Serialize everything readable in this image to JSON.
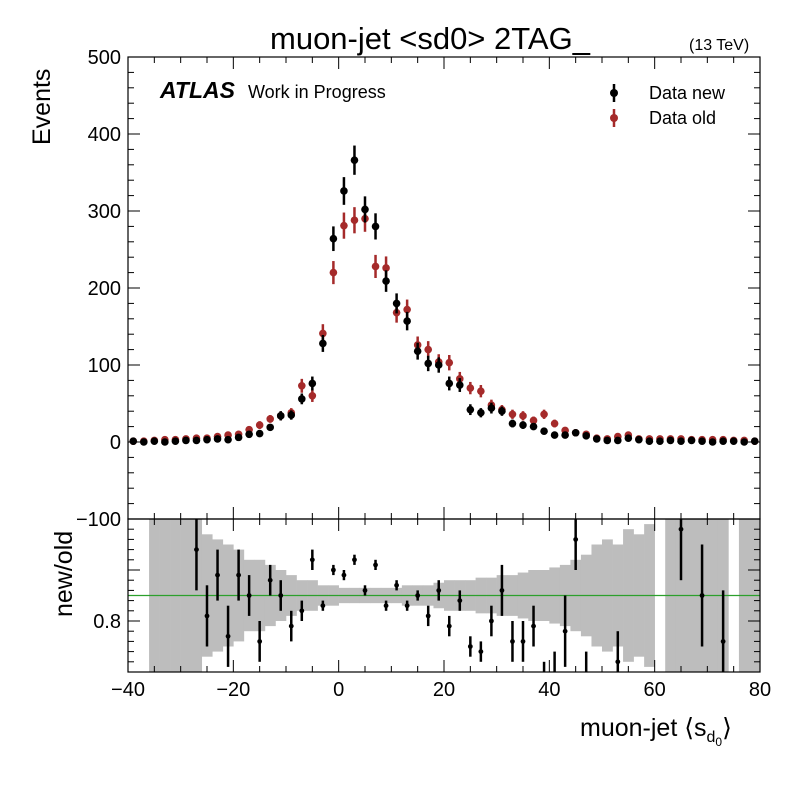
{
  "chart_data": {
    "type": "scatter",
    "title": "muon-jet <sd0> 2TAG_",
    "energy_label": "(13 TeV)",
    "atlas_label": "ATLAS",
    "atlas_sublabel": "Work in Progress",
    "xlabel": "muon-jet ⟨s",
    "xlabel_sub": "d",
    "xlabel_subsub": "0",
    "xlabel_close": "⟩",
    "ylabel": "Events",
    "ratio_ylabel": "new/old",
    "xlim": [
      -40,
      80
    ],
    "ylim": [
      -100,
      500
    ],
    "ratio_ylim": [
      0.7,
      1.0
    ],
    "ratio_reference": 0.85,
    "x_ticks": [
      "−40",
      "−20",
      "0",
      "20",
      "40",
      "60",
      "80"
    ],
    "x_tick_values": [
      -40,
      -20,
      0,
      20,
      40,
      60,
      80
    ],
    "y_ticks": [
      "−100",
      "0",
      "100",
      "200",
      "300",
      "400",
      "500"
    ],
    "y_tick_values": [
      -100,
      0,
      100,
      200,
      300,
      400,
      500
    ],
    "ratio_y_ticks": [
      "0.8"
    ],
    "ratio_y_tick_values": [
      0.8
    ],
    "legend_position": "top-right",
    "colors": {
      "new": "#000000",
      "old": "#a52a2a",
      "band": "#bdbdbd",
      "reference": "#2ca02c"
    },
    "series": [
      {
        "name": "Data new",
        "x": [
          -39,
          -37,
          -35,
          -33,
          -31,
          -29,
          -27,
          -25,
          -23,
          -21,
          -19,
          -17,
          -15,
          -13,
          -11,
          -9,
          -7,
          -5,
          -3,
          -1,
          1,
          3,
          5,
          7,
          9,
          11,
          13,
          15,
          17,
          19,
          21,
          23,
          25,
          27,
          29,
          31,
          33,
          35,
          37,
          39,
          41,
          43,
          45,
          47,
          49,
          51,
          53,
          55,
          57,
          59,
          61,
          63,
          65,
          67,
          69,
          71,
          73,
          75,
          77,
          79
        ],
        "y": [
          1,
          0,
          1,
          0,
          1,
          2,
          2,
          3,
          4,
          3,
          6,
          10,
          11,
          19,
          34,
          35,
          56,
          76,
          128,
          264,
          326,
          366,
          302,
          280,
          209,
          180,
          157,
          118,
          102,
          100,
          76,
          74,
          42,
          38,
          44,
          40,
          24,
          22,
          20,
          14,
          9,
          9,
          12,
          8,
          4,
          2,
          2,
          5,
          3,
          1,
          1,
          2,
          1,
          2,
          1,
          0,
          1,
          1,
          0,
          1
        ],
        "err": [
          1,
          1,
          1,
          1,
          1,
          1,
          2,
          2,
          2,
          2,
          3,
          3,
          3,
          4,
          6,
          6,
          7,
          9,
          11,
          16,
          18,
          19,
          17,
          17,
          14,
          13,
          12,
          11,
          10,
          10,
          9,
          9,
          7,
          6,
          7,
          6,
          5,
          5,
          4,
          4,
          3,
          3,
          3,
          3,
          2,
          1,
          1,
          2,
          2,
          1,
          1,
          1,
          1,
          1,
          1,
          1,
          1,
          1,
          1,
          1
        ]
      },
      {
        "name": "Data old",
        "x": [
          -39,
          -37,
          -35,
          -33,
          -31,
          -29,
          -27,
          -25,
          -23,
          -21,
          -19,
          -17,
          -15,
          -13,
          -11,
          -9,
          -7,
          -5,
          -3,
          -1,
          1,
          3,
          5,
          7,
          9,
          11,
          13,
          15,
          17,
          19,
          21,
          23,
          25,
          27,
          29,
          31,
          33,
          35,
          37,
          39,
          41,
          43,
          45,
          47,
          49,
          51,
          53,
          55,
          57,
          59,
          61,
          63,
          65,
          67,
          69,
          71,
          73,
          75,
          77,
          79
        ],
        "y": [
          1,
          1,
          2,
          3,
          3,
          4,
          5,
          5,
          7,
          9,
          10,
          16,
          22,
          30,
          34,
          38,
          73,
          60,
          141,
          220,
          281,
          288,
          290,
          228,
          226,
          168,
          172,
          126,
          120,
          104,
          103,
          82,
          70,
          66,
          48,
          42,
          36,
          34,
          28,
          36,
          24,
          15,
          12,
          10,
          5,
          4,
          7,
          9,
          4,
          4,
          4,
          4,
          4,
          3,
          3,
          3,
          3,
          2,
          2,
          1
        ],
        "err": [
          1,
          1,
          1,
          2,
          2,
          2,
          2,
          2,
          3,
          3,
          3,
          4,
          5,
          5,
          6,
          6,
          9,
          8,
          12,
          15,
          17,
          17,
          17,
          15,
          15,
          13,
          13,
          11,
          11,
          10,
          10,
          9,
          8,
          8,
          7,
          6,
          6,
          6,
          5,
          6,
          5,
          4,
          3,
          3,
          2,
          2,
          3,
          3,
          2,
          2,
          2,
          2,
          2,
          2,
          2,
          2,
          2,
          1,
          1,
          1
        ]
      }
    ],
    "ratio": {
      "x": [
        -27,
        -25,
        -23,
        -21,
        -19,
        -17,
        -15,
        -13,
        -11,
        -9,
        -7,
        -5,
        -3,
        -1,
        1,
        3,
        5,
        7,
        9,
        11,
        13,
        15,
        17,
        19,
        21,
        23,
        25,
        27,
        29,
        31,
        33,
        35,
        37,
        39,
        41,
        43,
        45,
        47,
        53,
        65,
        69,
        73
      ],
      "y": [
        0.94,
        0.81,
        0.89,
        0.77,
        0.89,
        0.85,
        0.76,
        0.88,
        0.85,
        0.79,
        0.82,
        0.92,
        0.83,
        0.9,
        0.89,
        0.92,
        0.86,
        0.91,
        0.83,
        0.87,
        0.83,
        0.85,
        0.81,
        0.86,
        0.79,
        0.84,
        0.75,
        0.74,
        0.8,
        0.86,
        0.76,
        0.76,
        0.79,
        0.67,
        0.68,
        0.78,
        0.96,
        0.66,
        0.72,
        0.98,
        0.85,
        0.76
      ],
      "err": [
        0.08,
        0.06,
        0.05,
        0.06,
        0.05,
        0.04,
        0.04,
        0.03,
        0.03,
        0.03,
        0.02,
        0.02,
        0.01,
        0.01,
        0.01,
        0.01,
        0.01,
        0.01,
        0.01,
        0.01,
        0.01,
        0.01,
        0.02,
        0.02,
        0.02,
        0.02,
        0.02,
        0.02,
        0.03,
        0.05,
        0.04,
        0.04,
        0.04,
        0.05,
        0.06,
        0.07,
        0.06,
        0.08,
        0.06,
        0.1,
        0.1,
        0.1
      ]
    },
    "ratio_band": {
      "edges": [
        -36,
        -34,
        -32,
        -30,
        -28,
        -26,
        -24,
        -22,
        -20,
        -18,
        -16,
        -14,
        -12,
        -10,
        -8,
        -6,
        -4,
        -2,
        0,
        2,
        4,
        6,
        8,
        10,
        12,
        14,
        16,
        18,
        20,
        22,
        24,
        26,
        28,
        30,
        32,
        34,
        36,
        38,
        40,
        42,
        44,
        46,
        48,
        50,
        52,
        54,
        56,
        58,
        60,
        62,
        64,
        66,
        68,
        70,
        72,
        74,
        76,
        78,
        80
      ],
      "half_width": [
        0.2,
        0.2,
        0.18,
        0.16,
        0.15,
        0.12,
        0.11,
        0.1,
        0.09,
        0.07,
        0.07,
        0.06,
        0.05,
        0.04,
        0.03,
        0.03,
        0.02,
        0.02,
        0.015,
        0.015,
        0.015,
        0.015,
        0.015,
        0.015,
        0.02,
        0.02,
        0.02,
        0.025,
        0.03,
        0.03,
        0.03,
        0.035,
        0.035,
        0.04,
        0.04,
        0.045,
        0.05,
        0.05,
        0.055,
        0.06,
        0.07,
        0.08,
        0.1,
        0.11,
        0.1,
        0.13,
        0.12,
        0.14,
        0.2,
        0.2,
        0.2,
        0.2,
        0.2,
        0.2,
        0.2,
        0.2,
        0.2,
        0.2
      ],
      "gaps": [
        [
          60,
          62
        ],
        [
          74,
          76
        ]
      ]
    }
  }
}
